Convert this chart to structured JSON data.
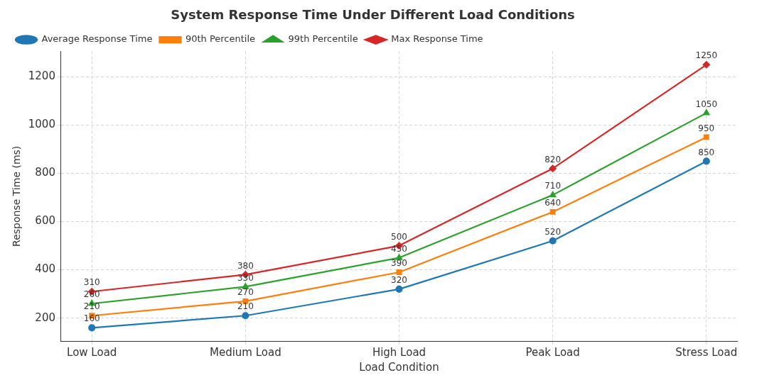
{
  "chart_data": {
    "type": "line",
    "title": "System Response Time Under Different Load Conditions",
    "xlabel": "Load Condition",
    "ylabel": "Response Time (ms)",
    "categories": [
      "Low Load",
      "Medium Load",
      "High Load",
      "Peak Load",
      "Stress Load"
    ],
    "series": [
      {
        "name": "Average Response Time",
        "color": "#1f77b4",
        "marker": "circle",
        "values": [
          160,
          210,
          320,
          520,
          850
        ]
      },
      {
        "name": "90th Percentile",
        "color": "#ff7f0e",
        "marker": "square",
        "values": [
          210,
          270,
          390,
          640,
          950
        ]
      },
      {
        "name": "99th Percentile",
        "color": "#2ca02c",
        "marker": "triangle",
        "values": [
          260,
          330,
          450,
          710,
          1050
        ]
      },
      {
        "name": "Max Response Time",
        "color": "#d62728",
        "marker": "diamond",
        "values": [
          310,
          380,
          500,
          820,
          1250
        ]
      }
    ],
    "ylim": [
      105,
      1305
    ],
    "yticks": [
      200,
      400,
      600,
      800,
      1000,
      1200
    ],
    "grid": true,
    "legend": "top left",
    "data_labels": true,
    "line_style": "solid"
  }
}
